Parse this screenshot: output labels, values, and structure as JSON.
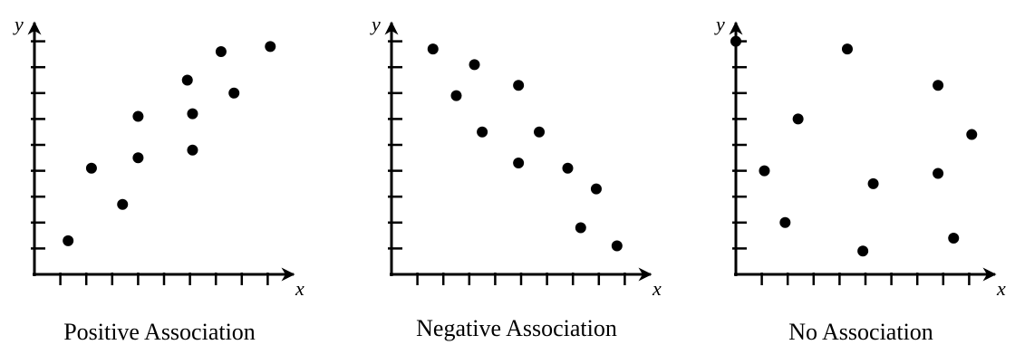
{
  "chart_data": [
    {
      "type": "scatter",
      "title": "Positive Association",
      "xlabel": "x",
      "ylabel": "y",
      "color": "#000000",
      "x": [
        1.3,
        2.2,
        3.4,
        4.0,
        4.0,
        5.9,
        6.1,
        6.1,
        7.2,
        7.7,
        9.1
      ],
      "values": [
        1.3,
        4.1,
        2.7,
        6.1,
        4.5,
        7.5,
        6.2,
        4.8,
        8.6,
        7.0,
        8.8
      ],
      "xlim": [
        0,
        10
      ],
      "ylim": [
        0,
        10
      ],
      "xticks": [
        1,
        2,
        3,
        4,
        5,
        6,
        7,
        8,
        9
      ],
      "yticks": [
        1,
        2,
        3,
        4,
        5,
        6,
        7,
        8,
        9
      ]
    },
    {
      "type": "scatter",
      "title": "Negative Association",
      "xlabel": "x",
      "ylabel": "y",
      "color": "#000000",
      "x": [
        1.6,
        2.5,
        3.2,
        3.5,
        4.9,
        5.7,
        4.9,
        6.8,
        7.9,
        7.3,
        8.7
      ],
      "values": [
        8.7,
        6.9,
        8.1,
        5.5,
        7.3,
        5.5,
        4.3,
        4.1,
        3.3,
        1.8,
        1.1
      ],
      "xlim": [
        0,
        10
      ],
      "ylim": [
        0,
        10
      ],
      "xticks": [
        1,
        2,
        3,
        4,
        5,
        6,
        7,
        8,
        9
      ],
      "yticks": [
        1,
        2,
        3,
        4,
        5,
        6,
        7,
        8,
        9
      ]
    },
    {
      "type": "scatter",
      "title": "No Association",
      "xlabel": "x",
      "ylabel": "y",
      "color": "#000000",
      "x": [
        0,
        1.1,
        1.9,
        2.4,
        4.3,
        5.3,
        4.9,
        7.8,
        7.8,
        9.1,
        8.4
      ],
      "values": [
        9.0,
        4.0,
        2.0,
        6.0,
        8.7,
        3.5,
        0.9,
        7.3,
        3.9,
        5.4,
        1.4
      ],
      "xlim": [
        0,
        10
      ],
      "ylim": [
        0,
        10
      ],
      "xticks": [
        1,
        2,
        3,
        4,
        5,
        6,
        7,
        8,
        9
      ],
      "yticks": [
        1,
        2,
        3,
        4,
        5,
        6,
        7,
        8,
        9
      ]
    }
  ]
}
